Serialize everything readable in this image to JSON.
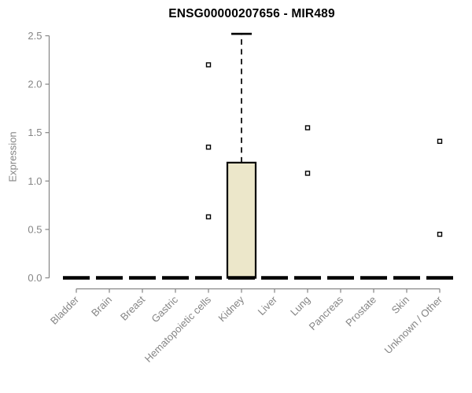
{
  "chart_data": {
    "type": "boxplot",
    "title": "ENSG00000207656 - MIR489",
    "ylabel": "Expression",
    "xlabel": "",
    "ylim": [
      0.0,
      2.5
    ],
    "yticks": [
      0.0,
      0.5,
      1.0,
      1.5,
      2.0,
      2.5
    ],
    "ytick_labels": [
      "0.0",
      "0.5",
      "1.0",
      "1.5",
      "2.0",
      "2.5"
    ],
    "categories": [
      "Bladder",
      "Brain",
      "Breast",
      "Gastric",
      "Hematopoietic cells",
      "Kidney",
      "Liver",
      "Lung",
      "Pancreas",
      "Prostate",
      "Skin",
      "Unknown / Other"
    ],
    "grid": false,
    "legend_position": "none",
    "boxes": [
      {
        "category": "Bladder",
        "min": 0,
        "q1": 0,
        "median": 0,
        "q3": 0,
        "max": 0,
        "outliers": []
      },
      {
        "category": "Brain",
        "min": 0,
        "q1": 0,
        "median": 0,
        "q3": 0,
        "max": 0,
        "outliers": []
      },
      {
        "category": "Breast",
        "min": 0,
        "q1": 0,
        "median": 0,
        "q3": 0,
        "max": 0,
        "outliers": []
      },
      {
        "category": "Gastric",
        "min": 0,
        "q1": 0,
        "median": 0,
        "q3": 0,
        "max": 0,
        "outliers": []
      },
      {
        "category": "Hematopoietic cells",
        "min": 0,
        "q1": 0,
        "median": 0,
        "q3": 0,
        "max": 0,
        "outliers": [
          2.2,
          1.35,
          0.63
        ]
      },
      {
        "category": "Kidney",
        "min": 0,
        "q1": 0,
        "median": 0,
        "q3": 1.19,
        "max": 2.52,
        "outliers": []
      },
      {
        "category": "Liver",
        "min": 0,
        "q1": 0,
        "median": 0,
        "q3": 0,
        "max": 0,
        "outliers": []
      },
      {
        "category": "Lung",
        "min": 0,
        "q1": 0,
        "median": 0,
        "q3": 0,
        "max": 0,
        "outliers": [
          1.55,
          1.08
        ]
      },
      {
        "category": "Pancreas",
        "min": 0,
        "q1": 0,
        "median": 0,
        "q3": 0,
        "max": 0,
        "outliers": []
      },
      {
        "category": "Prostate",
        "min": 0,
        "q1": 0,
        "median": 0,
        "q3": 0,
        "max": 0,
        "outliers": []
      },
      {
        "category": "Skin",
        "min": 0,
        "q1": 0,
        "median": 0,
        "q3": 0,
        "max": 0,
        "outliers": []
      },
      {
        "category": "Unknown / Other",
        "min": 0,
        "q1": 0,
        "median": 0,
        "q3": 0,
        "max": 0,
        "outliers": [
          1.41,
          0.45
        ]
      }
    ],
    "colors": {
      "box_fill": "#ece7ca",
      "box_border": "#000000",
      "median": "#000000",
      "whisker": "#000000",
      "outlier_stroke": "#000000",
      "outlier_fill": "#ffffff",
      "axis": "#858585",
      "tick_label": "#858585",
      "title": "#000000",
      "background": "#ffffff"
    }
  }
}
